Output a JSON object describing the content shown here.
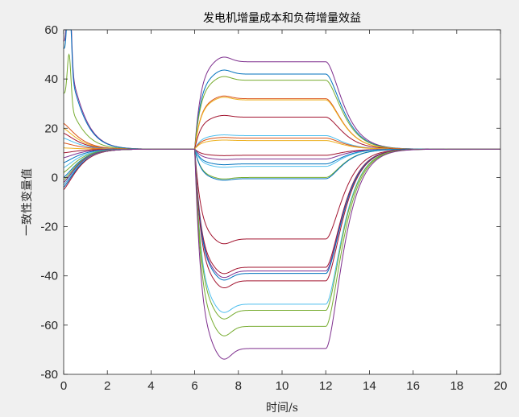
{
  "chart_data": {
    "type": "line",
    "title": "发电机增量成本和负荷增量效益",
    "xlabel": "时间/s",
    "ylabel": "一致性变量值",
    "xlim": [
      0,
      20
    ],
    "ylim": [
      -80,
      60
    ],
    "xticks": [
      0,
      2,
      4,
      6,
      8,
      10,
      12,
      14,
      16,
      18,
      20
    ],
    "yticks": [
      -80,
      -60,
      -40,
      -20,
      0,
      20,
      40,
      60
    ],
    "grid": false,
    "legend": "none",
    "consensus_value": 11.5,
    "event_times": [
      6,
      12
    ],
    "series": [
      {
        "color": "#7E2F8E",
        "start": 55,
        "plateau": 47
      },
      {
        "color": "#0072BD",
        "start": 52,
        "plateau": 42
      },
      {
        "color": "#77AC30",
        "start": 34,
        "plateau": 39.5
      },
      {
        "color": "#D95319",
        "start": 22,
        "plateau": 32
      },
      {
        "color": "#EDB120",
        "start": 20,
        "plateau": 31.5
      },
      {
        "color": "#A2142F",
        "start": 18,
        "plateau": 24.5
      },
      {
        "color": "#4DBEEE",
        "start": 16,
        "plateau": 17
      },
      {
        "color": "#D95319",
        "start": 14,
        "plateau": 16
      },
      {
        "color": "#EDB120",
        "start": 12,
        "plateau": 15
      },
      {
        "color": "#A2142F",
        "start": 10,
        "plateau": 9
      },
      {
        "color": "#7E2F8E",
        "start": 8,
        "plateau": 7.5
      },
      {
        "color": "#0072BD",
        "start": 6,
        "plateau": 5.5
      },
      {
        "color": "#4DBEEE",
        "start": 4,
        "plateau": 4.5
      },
      {
        "color": "#77AC30",
        "start": 2,
        "plateau": 0
      },
      {
        "color": "#0072BD",
        "start": 0,
        "plateau": -0.5
      },
      {
        "color": "#A2142F",
        "start": -2,
        "plateau": -25
      },
      {
        "color": "#A2142F",
        "start": -3,
        "plateau": -36.5
      },
      {
        "color": "#7E2F8E",
        "start": -4,
        "plateau": -38
      },
      {
        "color": "#0072BD",
        "start": -4,
        "plateau": -39
      },
      {
        "color": "#A2142F",
        "start": -5,
        "plateau": -42
      },
      {
        "color": "#4DBEEE",
        "start": -3,
        "plateau": -51.5
      },
      {
        "color": "#77AC30",
        "start": -2,
        "plateau": -54
      },
      {
        "color": "#77AC30",
        "start": -1,
        "plateau": -60.5
      },
      {
        "color": "#7E2F8E",
        "start": -2,
        "plateau": -69.5
      }
    ]
  }
}
